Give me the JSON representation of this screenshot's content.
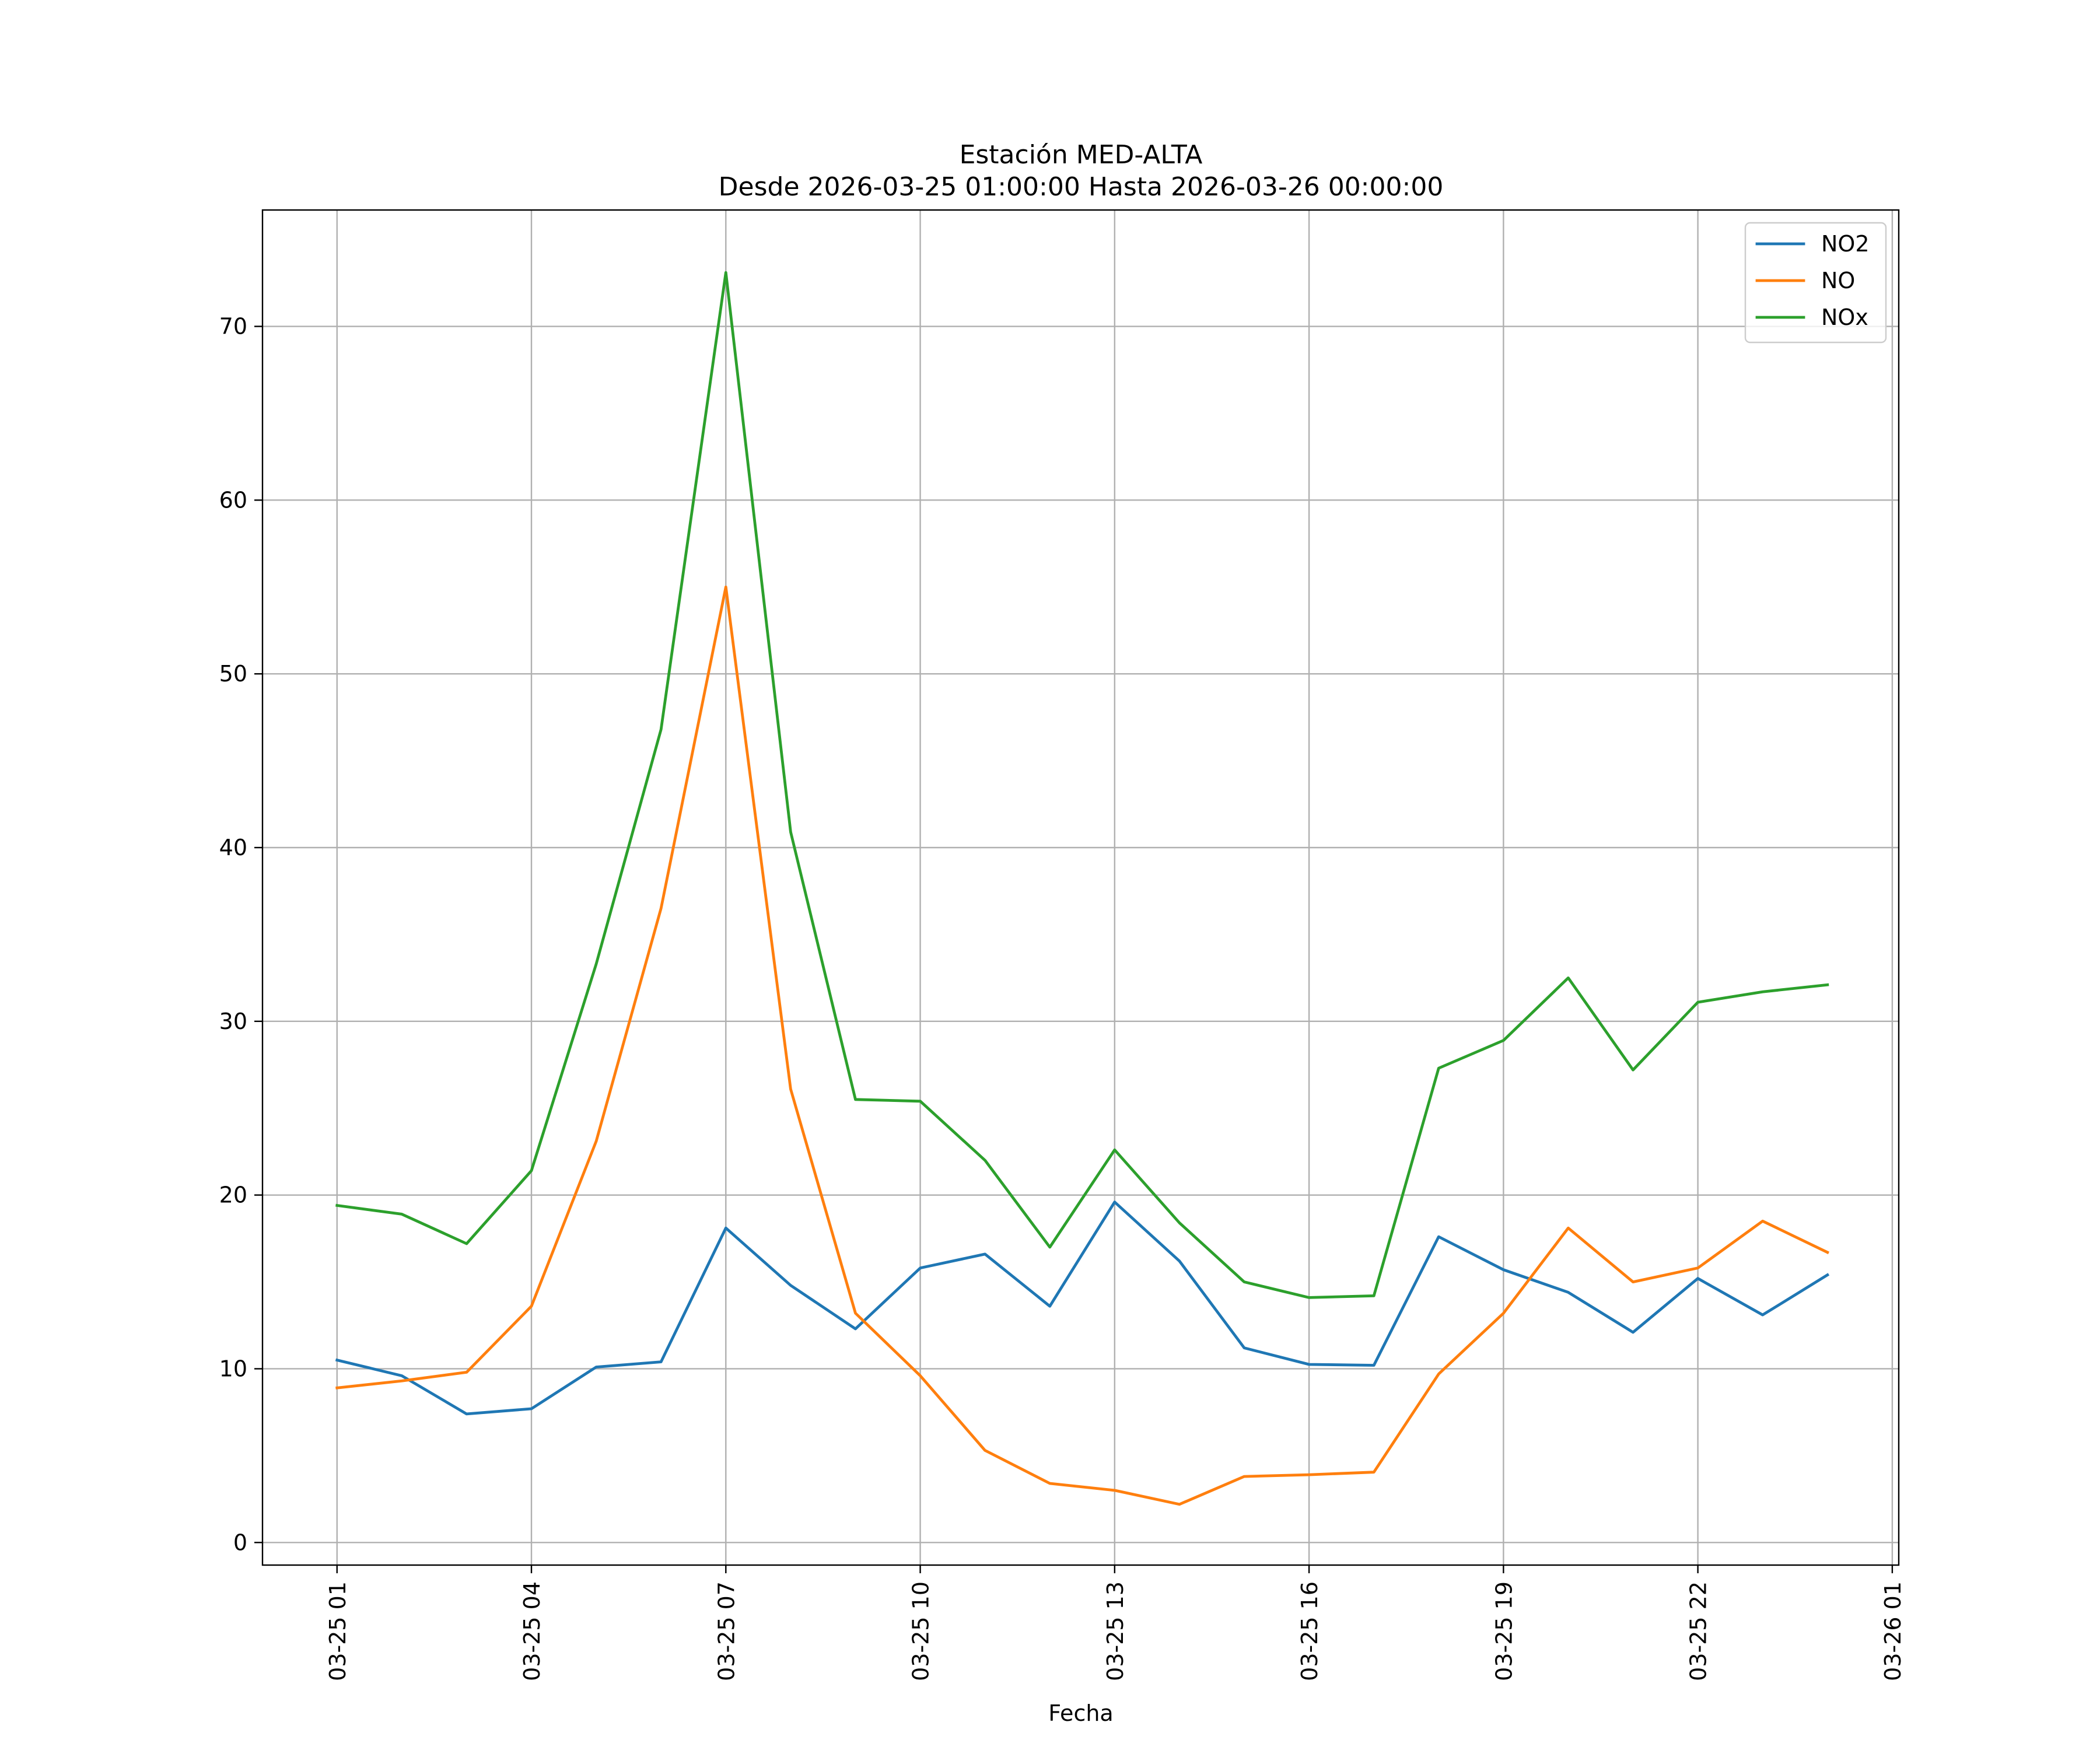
{
  "chart_data": {
    "type": "line",
    "title": "Estación MED-ALTA",
    "subtitle": "Desde 2026-03-25 01:00:00 Hasta 2026-03-26 00:00:00",
    "xlabel": "Fecha",
    "ylabel": "",
    "x": [
      "03-25 01",
      "03-25 02",
      "03-25 03",
      "03-25 04",
      "03-25 05",
      "03-25 06",
      "03-25 07",
      "03-25 08",
      "03-25 09",
      "03-25 10",
      "03-25 11",
      "03-25 12",
      "03-25 13",
      "03-25 14",
      "03-25 15",
      "03-25 16",
      "03-25 17",
      "03-25 18",
      "03-25 19",
      "03-25 20",
      "03-25 21",
      "03-25 22",
      "03-25 23",
      "03-26 00"
    ],
    "x_ticks": [
      "03-25 01",
      "03-25 04",
      "03-25 07",
      "03-25 10",
      "03-25 13",
      "03-25 16",
      "03-25 19",
      "03-25 22",
      "03-26 01"
    ],
    "xlim": [
      "03-25 00",
      "03-26 01"
    ],
    "y_ticks": [
      0,
      10,
      20,
      30,
      40,
      50,
      60,
      70
    ],
    "ylim": [
      -1.3,
      76.7
    ],
    "grid": true,
    "legend_position": "top-right",
    "series": [
      {
        "name": "NO2",
        "color": "#1f77b4",
        "values": [
          10.5,
          9.6,
          7.4,
          7.7,
          10.1,
          10.4,
          18.1,
          14.8,
          12.3,
          15.8,
          16.6,
          13.6,
          19.6,
          16.2,
          11.2,
          10.25,
          10.2,
          17.6,
          15.7,
          14.4,
          12.1,
          15.2,
          13.1,
          15.4
        ]
      },
      {
        "name": "NO",
        "color": "#ff7f0e",
        "values": [
          8.9,
          9.3,
          9.8,
          13.6,
          23.1,
          36.5,
          55.0,
          26.1,
          13.2,
          9.6,
          5.3,
          3.4,
          3.0,
          2.2,
          3.8,
          3.9,
          4.05,
          9.7,
          13.2,
          18.1,
          15.0,
          15.8,
          18.5,
          16.7
        ]
      },
      {
        "name": "NOx",
        "color": "#2ca02c",
        "values": [
          19.4,
          18.9,
          17.2,
          21.4,
          33.3,
          46.8,
          73.1,
          40.9,
          25.5,
          25.4,
          22.0,
          17.0,
          22.6,
          18.4,
          15.0,
          14.1,
          14.2,
          27.3,
          28.9,
          32.5,
          27.2,
          31.1,
          31.7,
          32.1
        ]
      }
    ]
  }
}
